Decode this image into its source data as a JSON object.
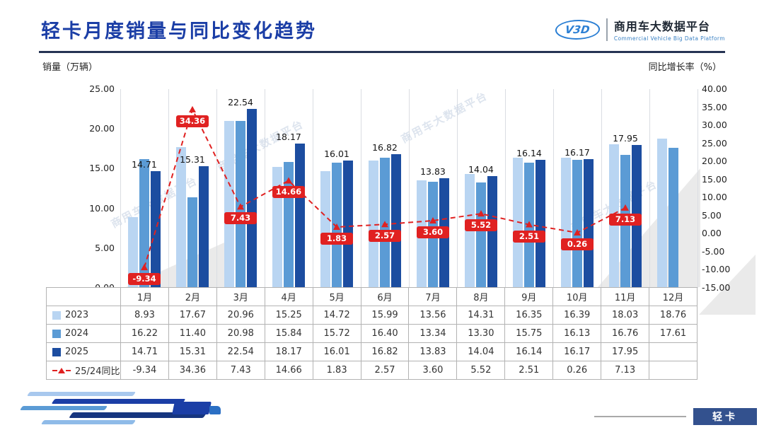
{
  "header": {
    "title": "轻卡月度销量与同比变化趋势",
    "logo_mark": "V3D",
    "logo_text": "商用车大数据平台",
    "logo_subtext": "Commercial Vehicle Big Data Platform"
  },
  "axes": {
    "left_title": "销量（万辆）",
    "right_title": "同比增长率（%）",
    "left_ticks": [
      "25.00",
      "20.00",
      "15.00",
      "10.00",
      "5.00",
      "0.00"
    ],
    "right_ticks": [
      "40.00",
      "35.00",
      "30.00",
      "25.00",
      "20.00",
      "15.00",
      "10.00",
      "5.00",
      "0.00",
      "-5.00",
      "-10.00",
      "-15.00"
    ]
  },
  "chart_data": {
    "type": "bar",
    "subtype": "grouped-bars-with-yoy-line",
    "title": "轻卡月度销量与同比变化趋势",
    "categories": [
      "1月",
      "2月",
      "3月",
      "4月",
      "5月",
      "6月",
      "7月",
      "8月",
      "9月",
      "10月",
      "11月",
      "12月"
    ],
    "series": [
      {
        "name": "2023",
        "color": "#b9d5f2",
        "values": [
          8.93,
          17.67,
          20.96,
          15.25,
          14.72,
          15.99,
          13.56,
          14.31,
          16.35,
          16.39,
          18.03,
          18.76
        ]
      },
      {
        "name": "2024",
        "color": "#5b9bd5",
        "values": [
          16.22,
          11.4,
          20.98,
          15.84,
          15.72,
          16.4,
          13.34,
          13.3,
          15.75,
          16.13,
          16.76,
          17.61
        ]
      },
      {
        "name": "2025",
        "color": "#1c4da0",
        "values": [
          14.71,
          15.31,
          22.54,
          18.17,
          16.01,
          16.82,
          13.83,
          14.04,
          16.14,
          16.17,
          17.95,
          null
        ]
      }
    ],
    "line_series": {
      "name": "25/24同比",
      "color": "#e02121",
      "values": [
        -9.34,
        34.36,
        7.43,
        14.66,
        1.83,
        2.57,
        3.6,
        5.52,
        2.51,
        0.26,
        7.13,
        null
      ]
    },
    "left_axis": {
      "min": 0,
      "max": 25,
      "title": "销量（万辆）"
    },
    "right_axis": {
      "min": -15,
      "max": 40,
      "title": "同比增长率（%）"
    },
    "bar_labels_series": "2025",
    "grid": "vertical-only",
    "legend_position": "table-left"
  },
  "footer": {
    "badge_label": "轻卡"
  },
  "watermark": "商用车大数据平台"
}
